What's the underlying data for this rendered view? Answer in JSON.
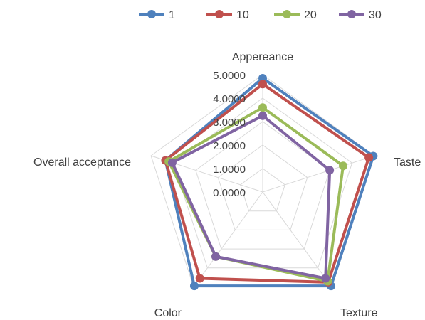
{
  "chart_data": {
    "type": "radar",
    "axes": [
      "Appereance",
      "Taste",
      "Texture",
      "Color",
      "Overall acceptance"
    ],
    "ticks": [
      "0.0000",
      "1.0000",
      "2.0000",
      "3.0000",
      "4.0000",
      "5.0000"
    ],
    "rlim": [
      0,
      5
    ],
    "legend_position": "top",
    "series": [
      {
        "name": "1",
        "color": "#4f81bd",
        "values": [
          4.85,
          4.95,
          4.95,
          4.95,
          4.35
        ]
      },
      {
        "name": "10",
        "color": "#c0504d",
        "values": [
          4.6,
          4.75,
          4.75,
          4.55,
          4.35
        ]
      },
      {
        "name": "20",
        "color": "#9bbb59",
        "values": [
          3.6,
          3.6,
          4.7,
          3.4,
          4.2
        ]
      },
      {
        "name": "30",
        "color": "#8064a2",
        "values": [
          3.25,
          3.0,
          4.55,
          3.4,
          4.05
        ]
      }
    ]
  }
}
